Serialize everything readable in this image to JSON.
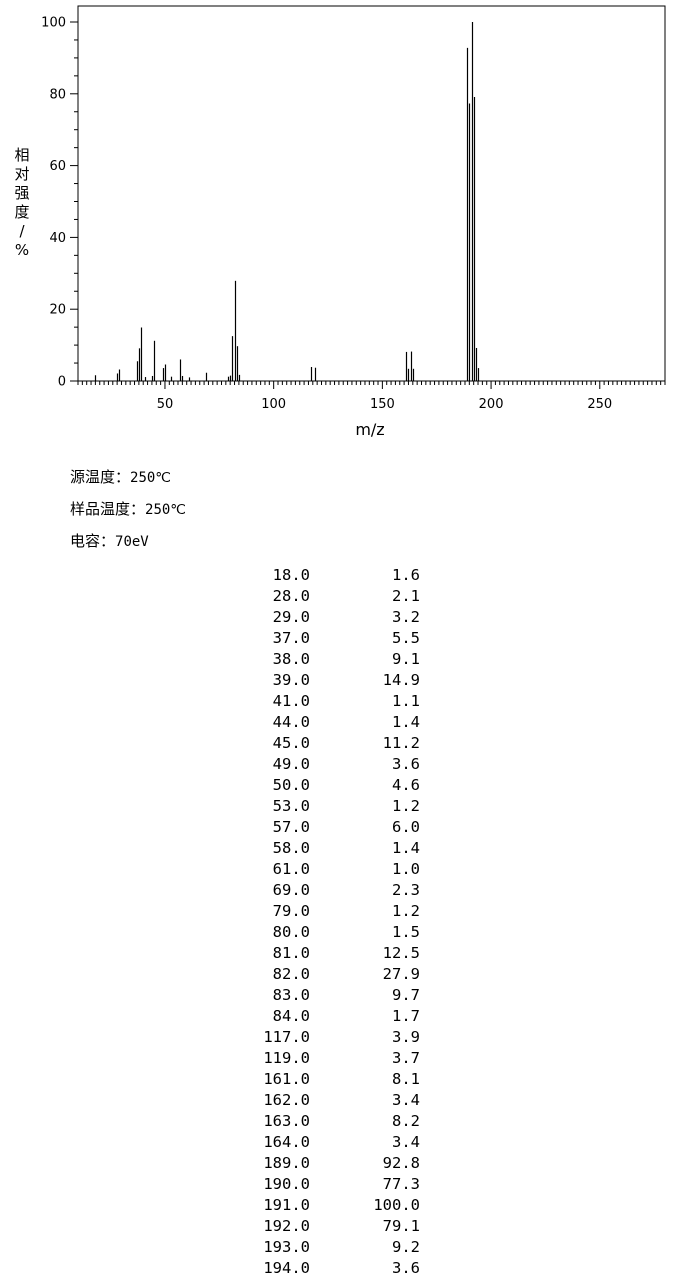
{
  "chart_data": {
    "type": "bar",
    "xlabel": "m/z",
    "ylabel": "相对强度/%",
    "xlim": [
      10,
      280
    ],
    "ylim": [
      0,
      100
    ],
    "xticks": [
      50,
      100,
      150,
      200,
      250
    ],
    "yticks": [
      0,
      20,
      40,
      60,
      80,
      100
    ],
    "grid": false,
    "bar_color": "#000000",
    "series": [
      {
        "x": [
          18,
          28,
          29,
          37,
          38,
          39,
          41,
          44,
          45,
          49,
          50,
          53,
          57,
          58,
          61,
          69,
          79,
          80,
          81,
          82,
          83,
          84,
          117,
          119,
          161,
          162,
          163,
          164,
          189,
          190,
          191,
          192,
          193,
          194
        ],
        "values": [
          1.6,
          2.1,
          3.2,
          5.5,
          9.1,
          14.9,
          1.1,
          1.4,
          11.2,
          3.6,
          4.6,
          1.2,
          6.0,
          1.4,
          1.0,
          2.3,
          1.2,
          1.5,
          12.5,
          27.9,
          9.7,
          1.7,
          3.9,
          3.7,
          8.1,
          3.4,
          8.2,
          3.4,
          92.8,
          77.3,
          100.0,
          79.1,
          9.2,
          3.6
        ]
      }
    ]
  },
  "conditions": {
    "source_temp": {
      "label": "源温度：",
      "value": "250℃"
    },
    "sample_temp": {
      "label": "样品温度：",
      "value": "250℃"
    },
    "energy": {
      "label": "电容：",
      "value": "70eV"
    }
  },
  "peak_table": [
    {
      "mz": "18.0",
      "abundance": "1.6"
    },
    {
      "mz": "28.0",
      "abundance": "2.1"
    },
    {
      "mz": "29.0",
      "abundance": "3.2"
    },
    {
      "mz": "37.0",
      "abundance": "5.5"
    },
    {
      "mz": "38.0",
      "abundance": "9.1"
    },
    {
      "mz": "39.0",
      "abundance": "14.9"
    },
    {
      "mz": "41.0",
      "abundance": "1.1"
    },
    {
      "mz": "44.0",
      "abundance": "1.4"
    },
    {
      "mz": "45.0",
      "abundance": "11.2"
    },
    {
      "mz": "49.0",
      "abundance": "3.6"
    },
    {
      "mz": "50.0",
      "abundance": "4.6"
    },
    {
      "mz": "53.0",
      "abundance": "1.2"
    },
    {
      "mz": "57.0",
      "abundance": "6.0"
    },
    {
      "mz": "58.0",
      "abundance": "1.4"
    },
    {
      "mz": "61.0",
      "abundance": "1.0"
    },
    {
      "mz": "69.0",
      "abundance": "2.3"
    },
    {
      "mz": "79.0",
      "abundance": "1.2"
    },
    {
      "mz": "80.0",
      "abundance": "1.5"
    },
    {
      "mz": "81.0",
      "abundance": "12.5"
    },
    {
      "mz": "82.0",
      "abundance": "27.9"
    },
    {
      "mz": "83.0",
      "abundance": "9.7"
    },
    {
      "mz": "84.0",
      "abundance": "1.7"
    },
    {
      "mz": "117.0",
      "abundance": "3.9"
    },
    {
      "mz": "119.0",
      "abundance": "3.7"
    },
    {
      "mz": "161.0",
      "abundance": "8.1"
    },
    {
      "mz": "162.0",
      "abundance": "3.4"
    },
    {
      "mz": "163.0",
      "abundance": "8.2"
    },
    {
      "mz": "164.0",
      "abundance": "3.4"
    },
    {
      "mz": "189.0",
      "abundance": "92.8"
    },
    {
      "mz": "190.0",
      "abundance": "77.3"
    },
    {
      "mz": "191.0",
      "abundance": "100.0"
    },
    {
      "mz": "192.0",
      "abundance": "79.1"
    },
    {
      "mz": "193.0",
      "abundance": "9.2"
    },
    {
      "mz": "194.0",
      "abundance": "3.6"
    }
  ]
}
